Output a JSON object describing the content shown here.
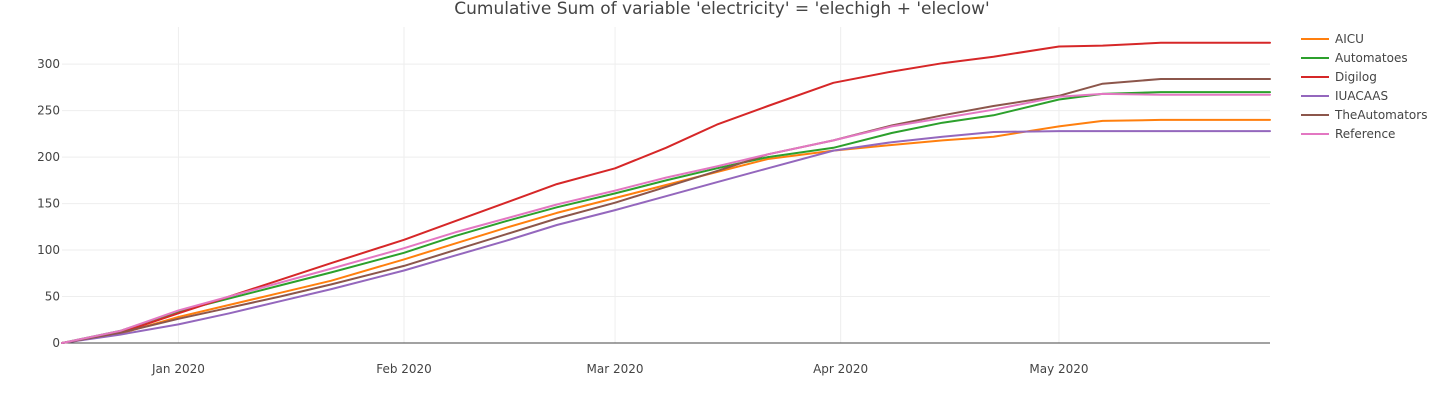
{
  "chart_data": {
    "type": "line",
    "title": "Cumulative Sum of variable 'electricity' = 'elechigh + 'eleclow'",
    "xlabel": "",
    "ylabel": "",
    "x_axis": {
      "type": "date",
      "range": [
        "2019-12-16",
        "2020-05-30"
      ],
      "ticks": [
        "2020-01-01",
        "2020-02-01",
        "2020-03-01",
        "2020-04-01",
        "2020-05-01"
      ],
      "tick_labels": [
        "Jan 2020",
        "Feb 2020",
        "Mar 2020",
        "Apr 2020",
        "May 2020"
      ]
    },
    "y_axis": {
      "range": [
        0,
        340
      ],
      "ticks": [
        0,
        50,
        100,
        150,
        200,
        250,
        300
      ]
    },
    "grid": true,
    "legend_placement": "top-right, outside plot",
    "series": [
      {
        "name": "AICU",
        "color": "#ff7f0e",
        "points": [
          [
            "2019-12-16",
            0
          ],
          [
            "2019-12-24",
            10
          ],
          [
            "2020-01-01",
            28
          ],
          [
            "2020-01-08",
            41
          ],
          [
            "2020-01-15",
            54
          ],
          [
            "2020-01-22",
            67
          ],
          [
            "2020-02-01",
            90
          ],
          [
            "2020-02-08",
            107
          ],
          [
            "2020-02-15",
            124
          ],
          [
            "2020-02-22",
            140
          ],
          [
            "2020-03-01",
            156
          ],
          [
            "2020-03-08",
            170
          ],
          [
            "2020-03-15",
            184
          ],
          [
            "2020-03-22",
            198
          ],
          [
            "2020-03-31",
            207
          ],
          [
            "2020-04-08",
            213
          ],
          [
            "2020-04-15",
            218
          ],
          [
            "2020-04-22",
            222
          ],
          [
            "2020-05-01",
            233
          ],
          [
            "2020-05-07",
            239
          ],
          [
            "2020-05-15",
            240
          ],
          [
            "2020-05-30",
            240
          ]
        ]
      },
      {
        "name": "Automatoes",
        "color": "#2ca02c",
        "points": [
          [
            "2019-12-16",
            0
          ],
          [
            "2019-12-24",
            13
          ],
          [
            "2020-01-01",
            34
          ],
          [
            "2020-01-08",
            48
          ],
          [
            "2020-01-15",
            62
          ],
          [
            "2020-01-22",
            76
          ],
          [
            "2020-02-01",
            97
          ],
          [
            "2020-02-08",
            115
          ],
          [
            "2020-02-15",
            131
          ],
          [
            "2020-02-22",
            146
          ],
          [
            "2020-03-01",
            161
          ],
          [
            "2020-03-08",
            175
          ],
          [
            "2020-03-15",
            188
          ],
          [
            "2020-03-22",
            200
          ],
          [
            "2020-03-31",
            210
          ],
          [
            "2020-04-08",
            226
          ],
          [
            "2020-04-15",
            237
          ],
          [
            "2020-04-22",
            245
          ],
          [
            "2020-05-01",
            262
          ],
          [
            "2020-05-07",
            268
          ],
          [
            "2020-05-15",
            270
          ],
          [
            "2020-05-30",
            270
          ]
        ]
      },
      {
        "name": "Digilog",
        "color": "#d62728",
        "points": [
          [
            "2019-12-16",
            0
          ],
          [
            "2019-12-24",
            11
          ],
          [
            "2020-01-01",
            32
          ],
          [
            "2020-01-08",
            50
          ],
          [
            "2020-01-15",
            68
          ],
          [
            "2020-01-22",
            86
          ],
          [
            "2020-02-01",
            111
          ],
          [
            "2020-02-08",
            131
          ],
          [
            "2020-02-15",
            151
          ],
          [
            "2020-02-22",
            171
          ],
          [
            "2020-03-01",
            188
          ],
          [
            "2020-03-08",
            210
          ],
          [
            "2020-03-15",
            235
          ],
          [
            "2020-03-22",
            255
          ],
          [
            "2020-03-31",
            280
          ],
          [
            "2020-04-08",
            292
          ],
          [
            "2020-04-15",
            301
          ],
          [
            "2020-04-22",
            308
          ],
          [
            "2020-05-01",
            319
          ],
          [
            "2020-05-07",
            320
          ],
          [
            "2020-05-15",
            323
          ],
          [
            "2020-05-30",
            323
          ]
        ]
      },
      {
        "name": "IUACAAS",
        "color": "#9467bd",
        "points": [
          [
            "2019-12-16",
            0
          ],
          [
            "2019-12-24",
            9
          ],
          [
            "2020-01-01",
            20
          ],
          [
            "2020-01-08",
            32
          ],
          [
            "2020-01-15",
            45
          ],
          [
            "2020-01-22",
            58
          ],
          [
            "2020-02-01",
            78
          ],
          [
            "2020-02-08",
            94
          ],
          [
            "2020-02-15",
            110
          ],
          [
            "2020-02-22",
            127
          ],
          [
            "2020-03-01",
            143
          ],
          [
            "2020-03-08",
            158
          ],
          [
            "2020-03-15",
            173
          ],
          [
            "2020-03-22",
            188
          ],
          [
            "2020-03-31",
            207
          ],
          [
            "2020-04-08",
            216
          ],
          [
            "2020-04-15",
            222
          ],
          [
            "2020-04-22",
            227
          ],
          [
            "2020-05-01",
            228
          ],
          [
            "2020-05-15",
            228
          ],
          [
            "2020-05-30",
            228
          ]
        ]
      },
      {
        "name": "TheAutomators",
        "color": "#8c564b",
        "points": [
          [
            "2019-12-16",
            0
          ],
          [
            "2019-12-24",
            11
          ],
          [
            "2020-01-01",
            26
          ],
          [
            "2020-01-08",
            38
          ],
          [
            "2020-01-15",
            50
          ],
          [
            "2020-01-22",
            63
          ],
          [
            "2020-02-01",
            83
          ],
          [
            "2020-02-08",
            100
          ],
          [
            "2020-02-15",
            117
          ],
          [
            "2020-02-22",
            134
          ],
          [
            "2020-03-01",
            151
          ],
          [
            "2020-03-08",
            168
          ],
          [
            "2020-03-15",
            185
          ],
          [
            "2020-03-22",
            203
          ],
          [
            "2020-03-31",
            218
          ],
          [
            "2020-04-08",
            234
          ],
          [
            "2020-04-15",
            245
          ],
          [
            "2020-04-22",
            255
          ],
          [
            "2020-05-01",
            266
          ],
          [
            "2020-05-07",
            279
          ],
          [
            "2020-05-15",
            284
          ],
          [
            "2020-05-30",
            284
          ]
        ]
      },
      {
        "name": "Reference",
        "color": "#e377c2",
        "points": [
          [
            "2019-12-16",
            0
          ],
          [
            "2019-12-24",
            13
          ],
          [
            "2020-01-01",
            35
          ],
          [
            "2020-01-08",
            50
          ],
          [
            "2020-01-15",
            65
          ],
          [
            "2020-01-22",
            80
          ],
          [
            "2020-02-01",
            102
          ],
          [
            "2020-02-08",
            119
          ],
          [
            "2020-02-15",
            134
          ],
          [
            "2020-02-22",
            149
          ],
          [
            "2020-03-01",
            164
          ],
          [
            "2020-03-08",
            178
          ],
          [
            "2020-03-15",
            190
          ],
          [
            "2020-03-22",
            203
          ],
          [
            "2020-03-31",
            218
          ],
          [
            "2020-04-08",
            233
          ],
          [
            "2020-04-15",
            242
          ],
          [
            "2020-04-22",
            251
          ],
          [
            "2020-05-01",
            265
          ],
          [
            "2020-05-07",
            268
          ],
          [
            "2020-05-15",
            267
          ],
          [
            "2020-05-30",
            267
          ]
        ]
      }
    ]
  }
}
